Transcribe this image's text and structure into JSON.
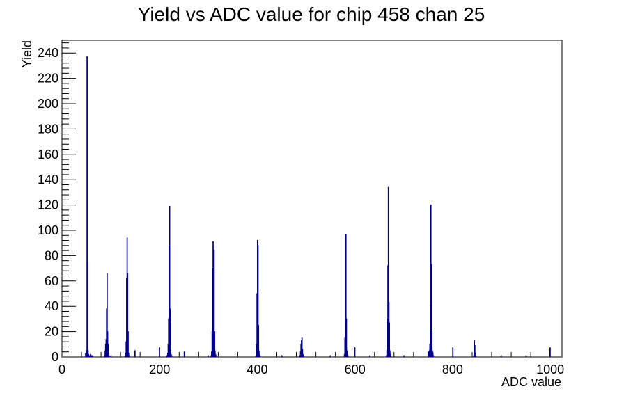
{
  "chart_data": {
    "type": "bar",
    "title": "Yield vs ADC value for chip 458 chan 25",
    "xlabel": "ADC value",
    "ylabel": "Yield",
    "xlim": [
      0,
      1024
    ],
    "ylim": [
      0,
      250
    ],
    "x_ticks": [
      "0",
      "200",
      "400",
      "600",
      "800",
      "1000"
    ],
    "y_ticks": [
      "0",
      "20",
      "40",
      "60",
      "80",
      "100",
      "120",
      "140",
      "160",
      "180",
      "200",
      "220",
      "240"
    ],
    "line_color": "#00008b",
    "series": [
      {
        "x": [
          48,
          50,
          51,
          52,
          53,
          54,
          56,
          58,
          60,
          61,
          62,
          63,
          64,
          87,
          88,
          89,
          90,
          91,
          92,
          93,
          94,
          95,
          96,
          97,
          100,
          129,
          130,
          131,
          132,
          133,
          134,
          135,
          136,
          137,
          138,
          149,
          199,
          214,
          216,
          217,
          218,
          219,
          220,
          221,
          222,
          223,
          224,
          225,
          226,
          250,
          299,
          305,
          306,
          307,
          308,
          309,
          310,
          311,
          312,
          313,
          314,
          315,
          316,
          397,
          398,
          399,
          400,
          401,
          402,
          403,
          404,
          405,
          406,
          450,
          487,
          488,
          489,
          490,
          491,
          492,
          493,
          494,
          495,
          496,
          549,
          578,
          579,
          580,
          581,
          582,
          583,
          584,
          585,
          586,
          599,
          630,
          664,
          665,
          666,
          667,
          668,
          669,
          670,
          671,
          672,
          673,
          674,
          675,
          700,
          750,
          752,
          753,
          754,
          755,
          756,
          757,
          758,
          759,
          760,
          761,
          762,
          800,
          843,
          844,
          845,
          846,
          847,
          848,
          849,
          899,
          950,
          999
        ],
        "values": [
          3,
          5,
          237,
          75,
          5,
          2,
          1,
          2,
          1,
          1,
          1,
          0,
          0,
          1,
          5,
          10,
          14,
          38,
          66,
          20,
          10,
          3,
          1,
          0,
          1,
          1,
          3,
          12,
          62,
          94,
          66,
          20,
          3,
          1,
          0,
          5,
          7,
          1,
          3,
          10,
          30,
          88,
          119,
          38,
          5,
          2,
          1,
          0,
          0,
          4,
          1,
          1,
          4,
          20,
          70,
          91,
          84,
          84,
          20,
          5,
          2,
          1,
          0,
          1,
          10,
          50,
          92,
          88,
          25,
          5,
          2,
          1,
          0,
          1,
          1,
          4,
          10,
          13,
          15,
          6,
          2,
          1,
          0,
          0,
          1,
          2,
          15,
          93,
          97,
          30,
          5,
          2,
          1,
          0,
          7,
          1,
          1,
          5,
          30,
          72,
          134,
          43,
          27,
          5,
          2,
          1,
          0,
          0,
          1,
          4,
          5,
          10,
          40,
          120,
          73,
          20,
          5,
          2,
          1,
          0,
          0,
          7,
          1,
          13,
          9,
          3,
          1,
          0,
          0,
          1,
          1,
          7
        ]
      }
    ]
  }
}
